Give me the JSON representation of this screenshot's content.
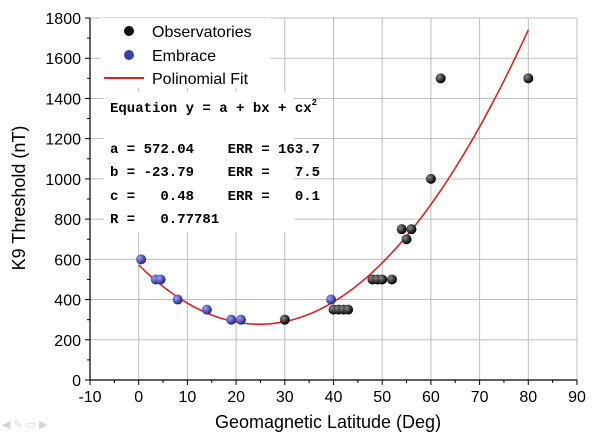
{
  "chart_data": {
    "type": "scatter",
    "xlabel": "Geomagnetic Latitude (Deg)",
    "ylabel": "K9 Threshold (nT)",
    "xlim": [
      -10,
      90
    ],
    "ylim": [
      0,
      1800
    ],
    "xticks": [
      -10,
      0,
      10,
      20,
      30,
      40,
      50,
      60,
      70,
      80,
      90
    ],
    "yticks": [
      0,
      200,
      400,
      600,
      800,
      1000,
      1200,
      1400,
      1600,
      1800
    ],
    "grid": true,
    "legend_position": "top-left",
    "series": [
      {
        "name": "Observatories",
        "kind": "scatter",
        "color": "#111111",
        "points": [
          [
            30,
            300
          ],
          [
            40,
            350
          ],
          [
            41,
            350
          ],
          [
            42,
            350
          ],
          [
            43,
            350
          ],
          [
            48,
            500
          ],
          [
            49,
            500
          ],
          [
            50,
            500
          ],
          [
            52,
            500
          ],
          [
            54,
            750
          ],
          [
            55,
            700
          ],
          [
            56,
            750
          ],
          [
            60,
            1000
          ],
          [
            62,
            1500
          ],
          [
            80,
            1500
          ]
        ]
      },
      {
        "name": "Embrace",
        "kind": "scatter",
        "color": "#3a3fa8",
        "points": [
          [
            0.5,
            600
          ],
          [
            3.5,
            500
          ],
          [
            4.5,
            500
          ],
          [
            8,
            400
          ],
          [
            14,
            350
          ],
          [
            19,
            300
          ],
          [
            21,
            300
          ],
          [
            39.5,
            400
          ]
        ]
      },
      {
        "name": "Polinomial Fit",
        "kind": "line",
        "color": "#e02020",
        "coefficients": {
          "a": 572.04,
          "b": -23.79,
          "c": 0.48
        },
        "x_range": [
          0,
          80
        ]
      }
    ],
    "annotation": {
      "equation_prefix": "Equation y = a + bx + cx",
      "equation_superscript": "2",
      "rows": [
        "a = 572.04    ERR = 163.7",
        "b = -23.79    ERR =   7.5",
        "c =   0.48    ERR =   0.1",
        "R =   0.77781"
      ]
    }
  }
}
